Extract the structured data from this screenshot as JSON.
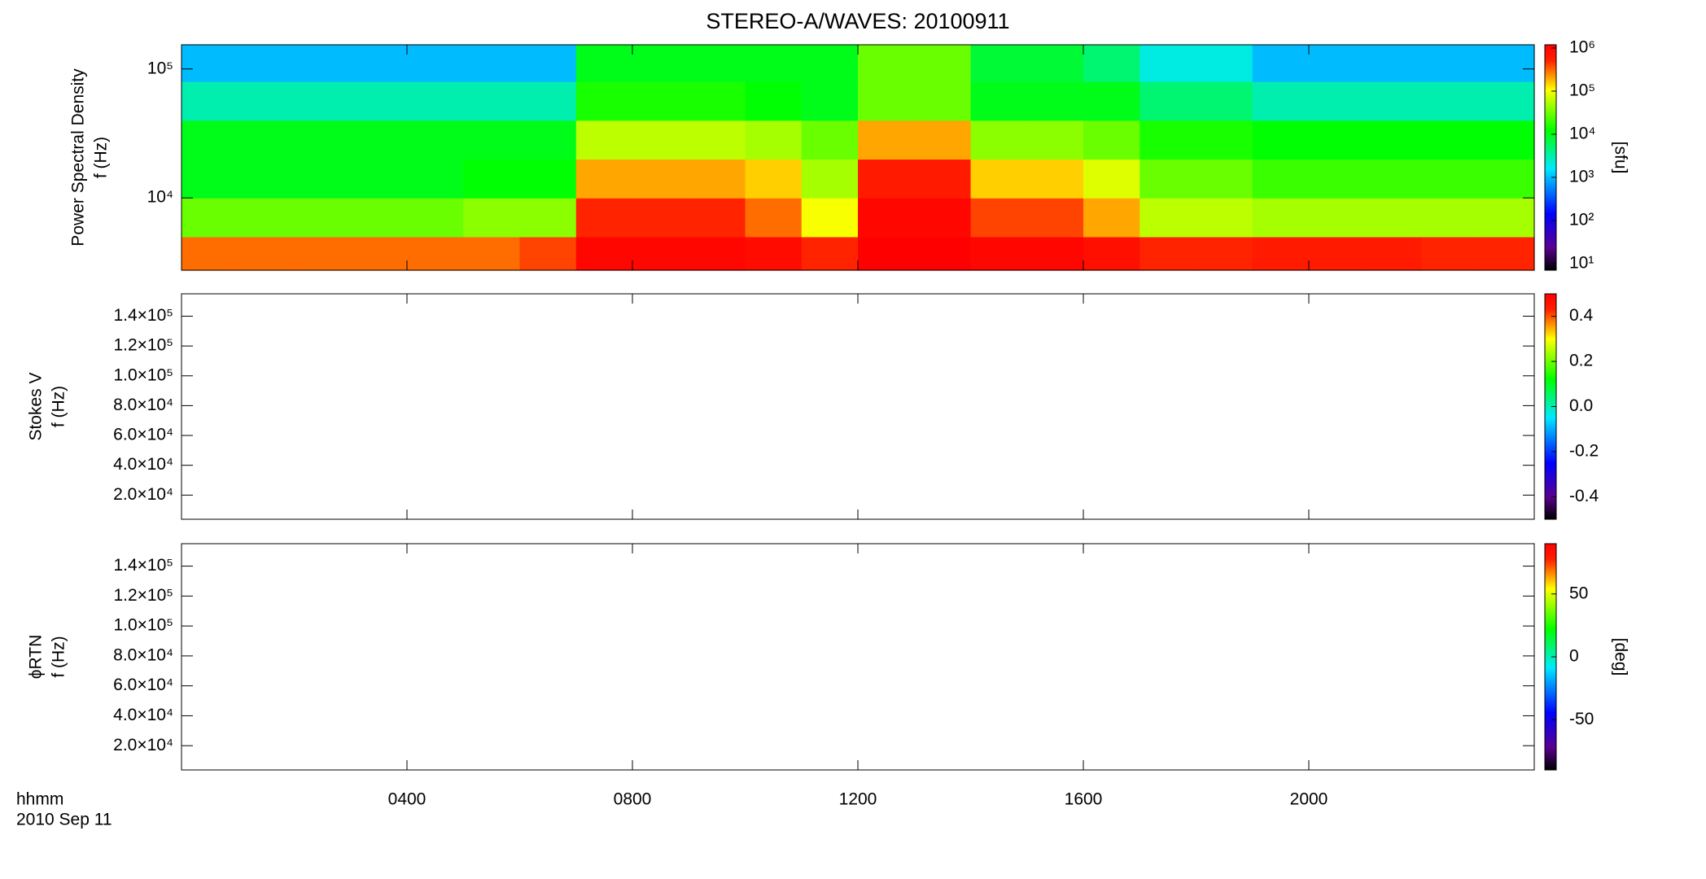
{
  "title": "STEREO-A/WAVES: 20100911",
  "x_axis": {
    "label": "hhmm",
    "date": "2010 Sep 11"
  },
  "chart_data": [
    {
      "type": "spectrogram",
      "ylabel": [
        "Power Spectral Density",
        "f (Hz)"
      ],
      "xlim": [
        0,
        24
      ],
      "xticks": [
        {
          "value": 4,
          "label": "0400"
        },
        {
          "value": 8,
          "label": "0800"
        },
        {
          "value": 12,
          "label": "1200"
        },
        {
          "value": 16,
          "label": "1600"
        },
        {
          "value": 20,
          "label": "2000"
        }
      ],
      "ylim": [
        2750,
        154000
      ],
      "ylog": true,
      "yticks": [
        {
          "value": 10000,
          "label": "10⁴"
        },
        {
          "value": 100000,
          "label": "10⁵"
        }
      ],
      "xbins": [
        0,
        1,
        2,
        3,
        4,
        5,
        6,
        7,
        8,
        9,
        10,
        11,
        12,
        13,
        14,
        15,
        16,
        17,
        18,
        19,
        20,
        21,
        22,
        23,
        24
      ],
      "ybins": [
        2750,
        5000,
        10000,
        20000,
        40000,
        80000,
        154000
      ],
      "values": [
        [
          300000,
          300000,
          300000,
          300000,
          300000,
          300000,
          400000,
          1000000,
          1000000,
          1000000,
          900000,
          500000,
          1200000,
          1200000,
          1000000,
          1000000,
          800000,
          500000,
          500000,
          600000,
          600000,
          600000,
          500000,
          500000
        ],
        [
          30000,
          30000,
          30000,
          30000,
          30000,
          40000,
          40000,
          500000,
          500000,
          500000,
          300000,
          100000,
          1000000,
          1000000,
          400000,
          400000,
          200000,
          60000,
          60000,
          50000,
          50000,
          50000,
          50000,
          50000
        ],
        [
          10000,
          10000,
          10000,
          10000,
          10000,
          12000,
          12000,
          200000,
          200000,
          200000,
          150000,
          50000,
          600000,
          600000,
          150000,
          150000,
          80000,
          30000,
          30000,
          20000,
          20000,
          20000,
          20000,
          20000
        ],
        [
          10000,
          10000,
          10000,
          10000,
          10000,
          10000,
          10000,
          60000,
          60000,
          60000,
          50000,
          30000,
          200000,
          200000,
          40000,
          40000,
          30000,
          15000,
          15000,
          12000,
          12000,
          12000,
          12000,
          12000
        ],
        [
          3000,
          3000,
          3000,
          3000,
          3000,
          3000,
          3000,
          15000,
          15000,
          15000,
          12000,
          10000,
          30000,
          30000,
          10000,
          10000,
          10000,
          5000,
          5000,
          3000,
          3000,
          3000,
          3000,
          3000
        ],
        [
          1000,
          1000,
          1000,
          1000,
          1000,
          1000,
          1000,
          10000,
          10000,
          10000,
          10000,
          10000,
          30000,
          30000,
          8000,
          8000,
          5000,
          2000,
          2000,
          1000,
          1000,
          1000,
          1000,
          1000
        ]
      ],
      "colorbar": {
        "lim": [
          7,
          1190000
        ],
        "log": true,
        "colormap": "rainbow",
        "label": "[sfu]",
        "ticks": [
          {
            "value": 10,
            "label": "10¹"
          },
          {
            "value": 100,
            "label": "10²"
          },
          {
            "value": 1000,
            "label": "10³"
          },
          {
            "value": 10000,
            "label": "10⁴"
          },
          {
            "value": 100000,
            "label": "10⁵"
          },
          {
            "value": 1000000,
            "label": "10⁶"
          }
        ]
      }
    },
    {
      "type": "spectrogram",
      "ylabel": [
        "Stokes V",
        "f (Hz)"
      ],
      "xlim": [
        0,
        24
      ],
      "xticks": [
        {
          "value": 4,
          "label": "0400"
        },
        {
          "value": 8,
          "label": "0800"
        },
        {
          "value": 12,
          "label": "1200"
        },
        {
          "value": 16,
          "label": "1600"
        },
        {
          "value": 20,
          "label": "2000"
        }
      ],
      "ylim": [
        3800,
        155000
      ],
      "ylog": false,
      "yticks": [
        {
          "value": 20000,
          "label": "2.0×10⁴"
        },
        {
          "value": 40000,
          "label": "4.0×10⁴"
        },
        {
          "value": 60000,
          "label": "6.0×10⁴"
        },
        {
          "value": 80000,
          "label": "8.0×10⁴"
        },
        {
          "value": 100000,
          "label": "1.0×10⁵"
        },
        {
          "value": 120000,
          "label": "1.2×10⁵"
        },
        {
          "value": 140000,
          "label": "1.4×10⁵"
        }
      ],
      "colorbar": {
        "lim": [
          -0.5,
          0.5
        ],
        "log": false,
        "colormap": "rainbow",
        "ticks": [
          -0.4,
          -0.2,
          {
            "value": 0,
            "label": "0.0"
          },
          0.2,
          0.4
        ]
      }
    },
    {
      "type": "spectrogram",
      "ylabel": [
        "ϕRTN",
        "f (Hz)"
      ],
      "xlim": [
        0,
        24
      ],
      "xticks": [
        {
          "value": 4,
          "label": "0400"
        },
        {
          "value": 8,
          "label": "0800"
        },
        {
          "value": 12,
          "label": "1200"
        },
        {
          "value": 16,
          "label": "1600"
        },
        {
          "value": 20,
          "label": "2000"
        }
      ],
      "ylim": [
        3800,
        155000
      ],
      "ylog": false,
      "yticks": [
        {
          "value": 20000,
          "label": "2.0×10⁴"
        },
        {
          "value": 40000,
          "label": "4.0×10⁴"
        },
        {
          "value": 60000,
          "label": "6.0×10⁴"
        },
        {
          "value": 80000,
          "label": "8.0×10⁴"
        },
        {
          "value": 100000,
          "label": "1.0×10⁵"
        },
        {
          "value": 120000,
          "label": "1.2×10⁵"
        },
        {
          "value": 140000,
          "label": "1.4×10⁵"
        }
      ],
      "colorbar": {
        "lim": [
          -90,
          90
        ],
        "log": false,
        "colormap": "rainbow",
        "label": "[deg]",
        "ticks": [
          -50,
          0,
          50
        ]
      }
    }
  ]
}
